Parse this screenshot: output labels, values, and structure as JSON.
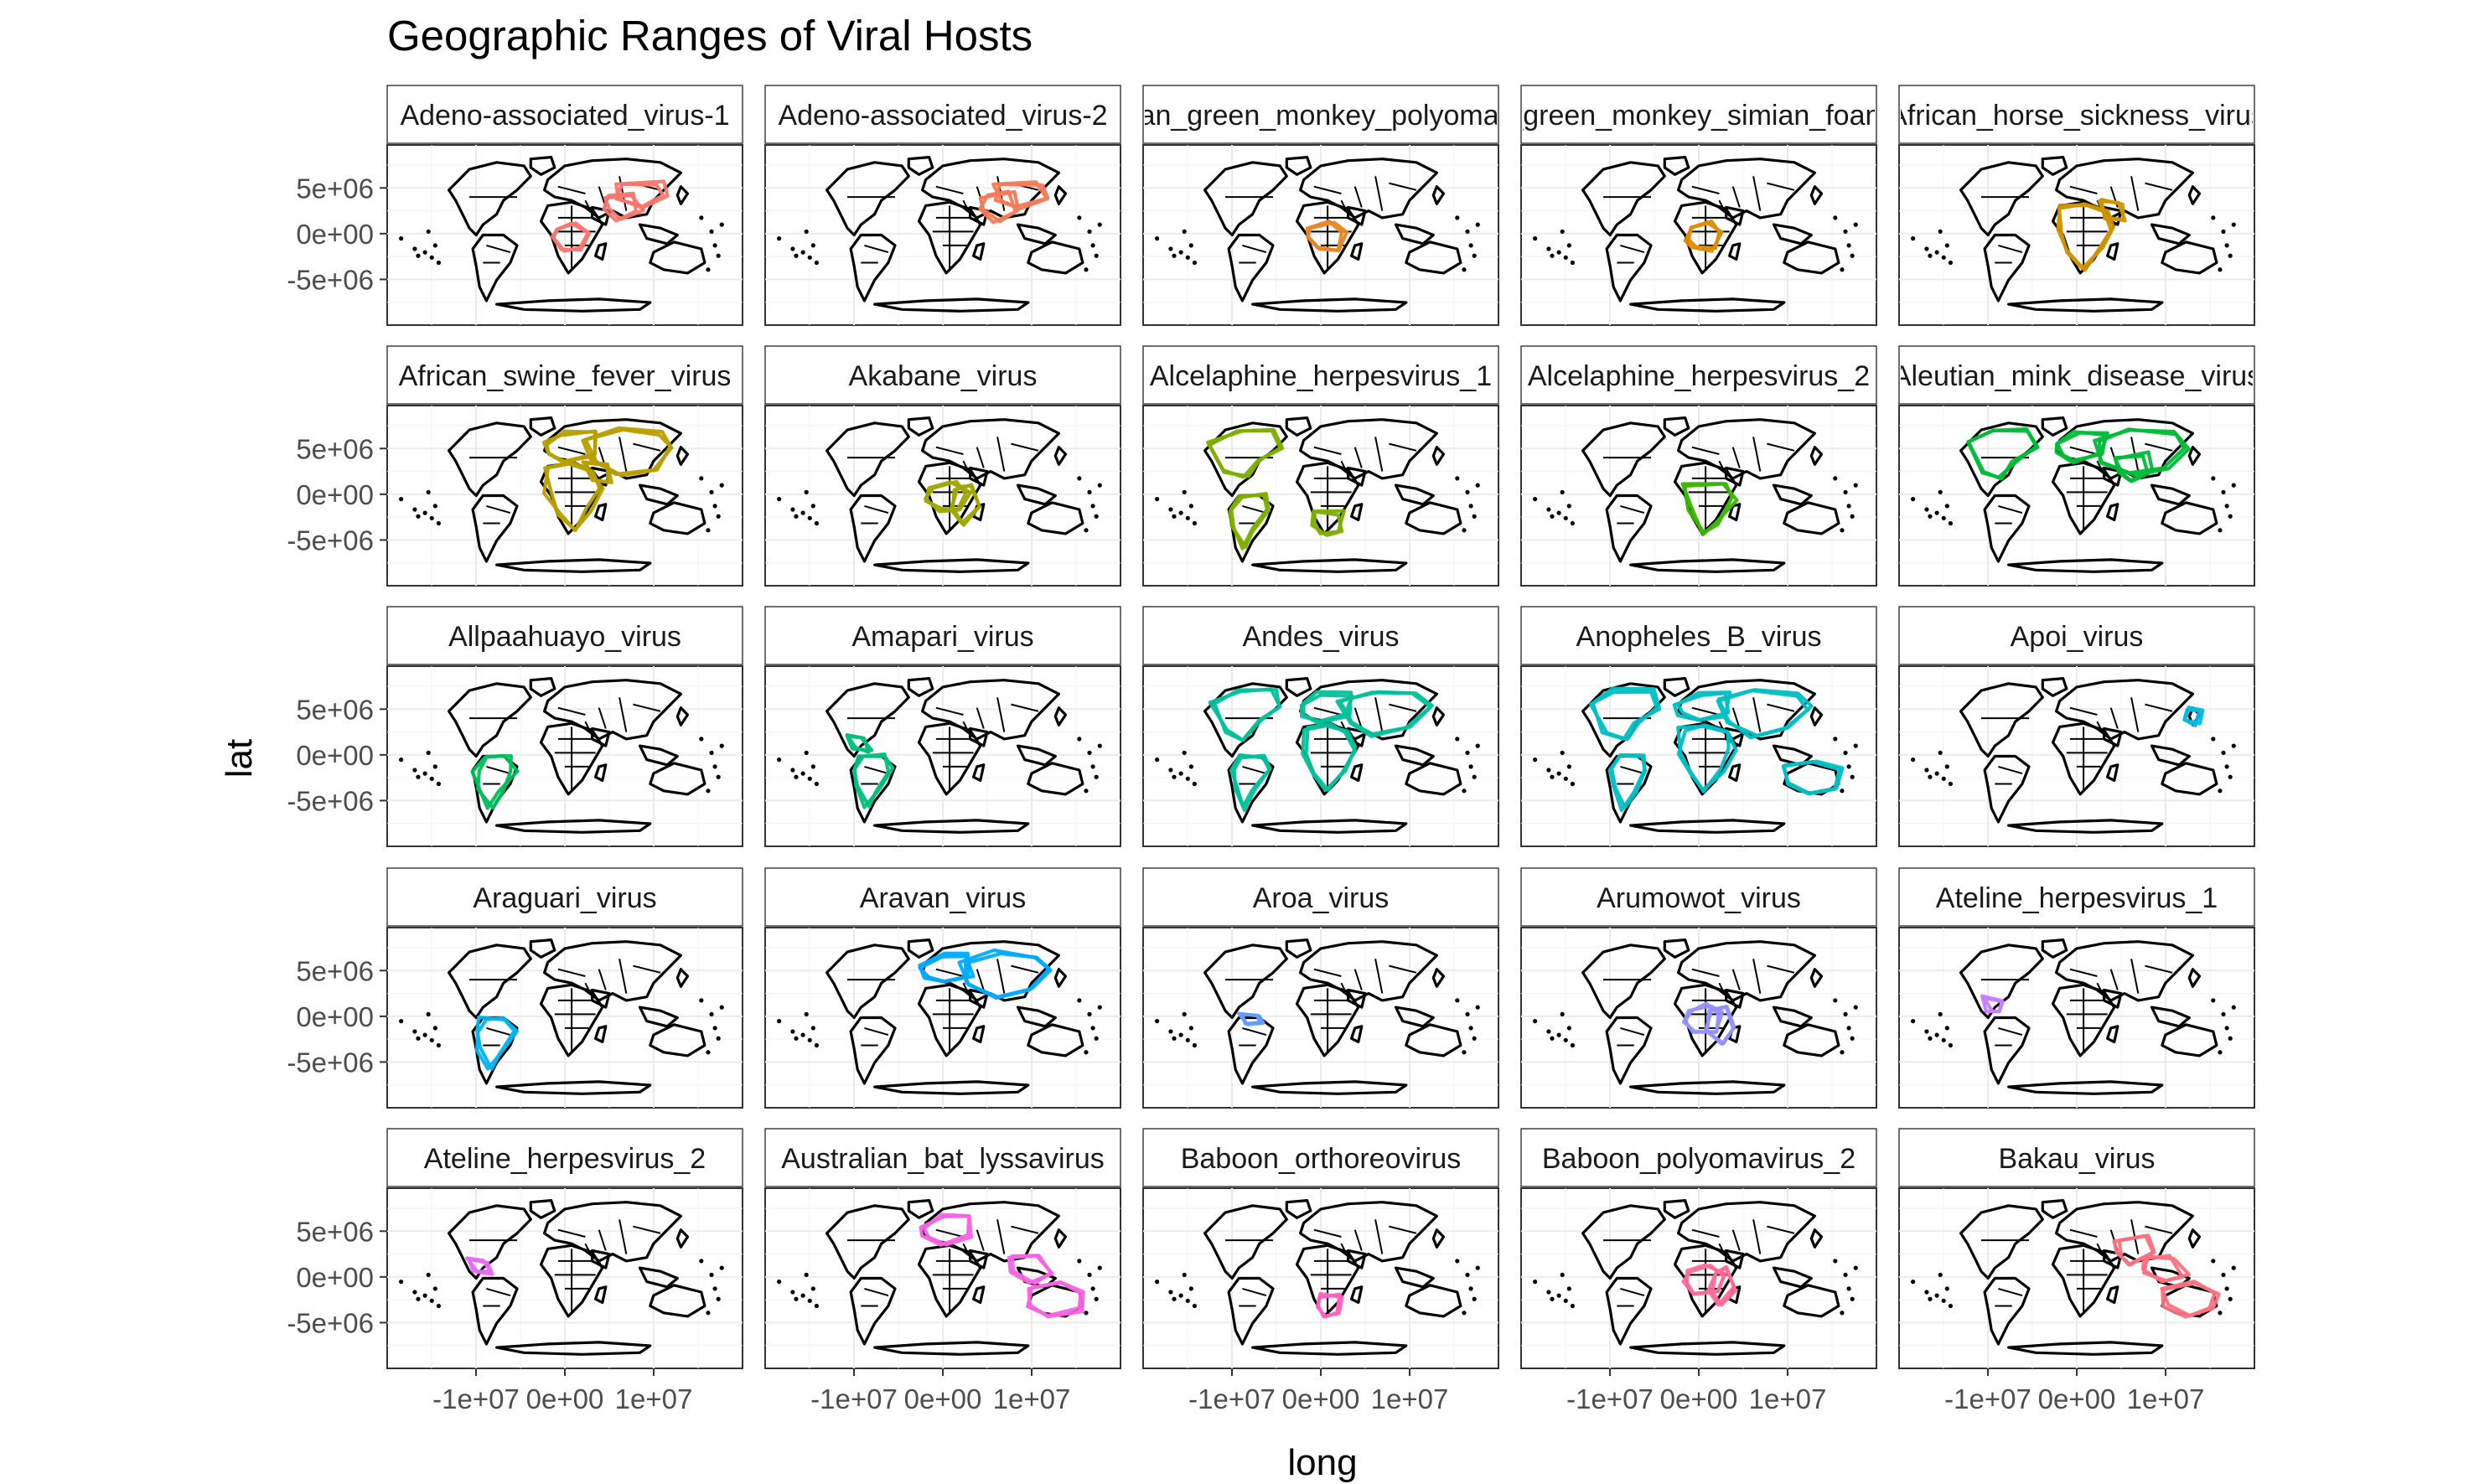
{
  "chart_data": {
    "type": "map",
    "title": "Geographic Ranges of Viral Hosts",
    "xlabel": "long",
    "ylabel": "lat",
    "facet_layout": {
      "rows": 5,
      "cols": 5
    },
    "x_ticks": [
      -10000000,
      0,
      10000000
    ],
    "x_tick_labels": [
      "-1e+07",
      "0e+00",
      "1e+07"
    ],
    "y_ticks": [
      5000000,
      0,
      -5000000
    ],
    "y_tick_labels": [
      "5e+06",
      "0e+00",
      "-5e+06"
    ],
    "xlim": [
      -20000000,
      20000000
    ],
    "ylim": [
      -10000000,
      9700000
    ],
    "grid": true,
    "panels": [
      {
        "label": "Adeno-associated_virus-1",
        "color": "#F8766D",
        "regions": [
          "central_africa",
          "south_asia",
          "east_asia"
        ]
      },
      {
        "label": "Adeno-associated_virus-2",
        "color": "#F37B59",
        "regions": [
          "south_asia",
          "east_asia"
        ]
      },
      {
        "label": "African_green_monkey_polyomavirus",
        "color": "#E88526",
        "regions": [
          "central_africa"
        ]
      },
      {
        "label": "African_green_monkey_simian_foamy_virus",
        "color": "#DE8C00",
        "regions": [
          "central_africa"
        ]
      },
      {
        "label": "African_horse_sickness_virus",
        "color": "#CF9400",
        "regions": [
          "africa",
          "middle_east"
        ]
      },
      {
        "label": "African_swine_fever_virus",
        "color": "#B79F00",
        "regions": [
          "europe",
          "africa",
          "asia",
          "middle_east"
        ]
      },
      {
        "label": "Akabane_virus",
        "color": "#9FA600",
        "regions": [
          "central_africa",
          "east_africa"
        ]
      },
      {
        "label": "Alcelaphine_herpesvirus_1",
        "color": "#7CAE00",
        "regions": [
          "north_america",
          "south_america",
          "southern_africa"
        ]
      },
      {
        "label": "Alcelaphine_herpesvirus_2",
        "color": "#39B600",
        "regions": [
          "sub_saharan_africa"
        ]
      },
      {
        "label": "Aleutian_mink_disease_virus",
        "color": "#00BA38",
        "regions": [
          "north_america",
          "europe",
          "asia",
          "south_asia"
        ]
      },
      {
        "label": "Allpaahuayo_virus",
        "color": "#00BD5C",
        "regions": [
          "south_america"
        ]
      },
      {
        "label": "Amapari_virus",
        "color": "#00BF7D",
        "regions": [
          "central_america",
          "south_america"
        ]
      },
      {
        "label": "Andes_virus",
        "color": "#00C19A",
        "regions": [
          "north_america",
          "south_america",
          "europe",
          "africa",
          "asia"
        ]
      },
      {
        "label": "Anopheles_B_virus",
        "color": "#00BFC4",
        "regions": [
          "north_america",
          "south_america",
          "europe",
          "africa",
          "asia",
          "australia"
        ]
      },
      {
        "label": "Apoi_virus",
        "color": "#00B9E3",
        "regions": [
          "japan"
        ]
      },
      {
        "label": "Araguari_virus",
        "color": "#00B4EF",
        "regions": [
          "south_america"
        ]
      },
      {
        "label": "Aravan_virus",
        "color": "#00A9FF",
        "regions": [
          "europe",
          "asia"
        ]
      },
      {
        "label": "Aroa_virus",
        "color": "#619CFF",
        "regions": [
          "venezuela"
        ]
      },
      {
        "label": "Arumowot_virus",
        "color": "#9590FF",
        "regions": [
          "central_africa",
          "east_africa"
        ]
      },
      {
        "label": "Ateline_herpesvirus_1",
        "color": "#C77CFF",
        "regions": [
          "central_america"
        ]
      },
      {
        "label": "Ateline_herpesvirus_2",
        "color": "#E76BF3",
        "regions": [
          "central_america"
        ]
      },
      {
        "label": "Australian_bat_lyssavirus",
        "color": "#F564E3",
        "regions": [
          "australia",
          "southeast_asia",
          "europe"
        ]
      },
      {
        "label": "Baboon_orthoreovirus",
        "color": "#FF61C3",
        "regions": [
          "southern_africa"
        ]
      },
      {
        "label": "Baboon_polyomavirus_2",
        "color": "#FF6A98",
        "regions": [
          "central_africa",
          "east_africa"
        ]
      },
      {
        "label": "Bakau_virus",
        "color": "#FC717F",
        "regions": [
          "south_asia",
          "southeast_asia",
          "australia"
        ]
      }
    ]
  }
}
